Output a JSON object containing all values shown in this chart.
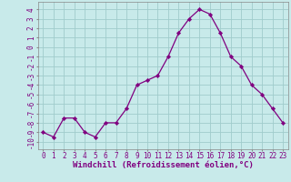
{
  "x": [
    0,
    1,
    2,
    3,
    4,
    5,
    6,
    7,
    8,
    9,
    10,
    11,
    12,
    13,
    14,
    15,
    16,
    17,
    18,
    19,
    20,
    21,
    22,
    23
  ],
  "y": [
    -9,
    -9.5,
    -7.5,
    -7.5,
    -9,
    -9.5,
    -8,
    -8,
    -6.5,
    -4,
    -3.5,
    -3,
    -1,
    1.5,
    3,
    4,
    3.5,
    1.5,
    -1,
    -2,
    -4,
    -5,
    -6.5,
    -8
  ],
  "line_color": "#800080",
  "marker_color": "#800080",
  "bg_color": "#c8eaea",
  "grid_color": "#a0cccc",
  "xlabel": "Windchill (Refroidissement éolien,°C)",
  "xlim": [
    -0.5,
    23.5
  ],
  "ylim": [
    -10.8,
    4.8
  ],
  "yticks": [
    4,
    3,
    2,
    1,
    0,
    -1,
    -2,
    -3,
    -4,
    -5,
    -6,
    -7,
    -8,
    -9,
    -10
  ],
  "xticks": [
    0,
    1,
    2,
    3,
    4,
    5,
    6,
    7,
    8,
    9,
    10,
    11,
    12,
    13,
    14,
    15,
    16,
    17,
    18,
    19,
    20,
    21,
    22,
    23
  ],
  "xlabel_fontsize": 6.5,
  "tick_fontsize": 5.5
}
